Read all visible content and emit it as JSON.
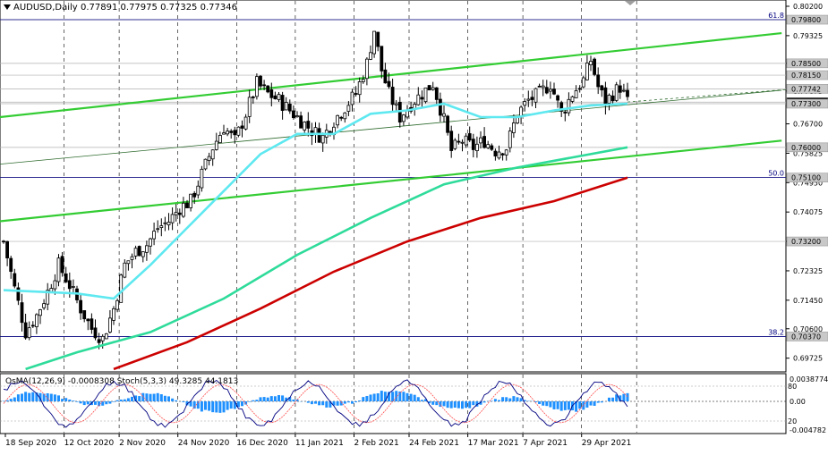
{
  "header": {
    "symbol": "AUDUSD,Daily",
    "ohlc": "0.77891 0.77975 0.77325 0.77346"
  },
  "osc_header": "OsMA(12,26,9) -0.0008308 Stoch(5,3,3) 49.3285 44.1813",
  "colors": {
    "background": "#ffffff",
    "candle": "#000000",
    "ma_short": "#5ee8f0",
    "ma_mid": "#2edb9a",
    "ma_long": "#cc0000",
    "channel": "#33cc33",
    "hist": "#1e90ff",
    "stoch_main": "#000080",
    "stoch_signal": "#ff4d4d",
    "fib_line": "#000080"
  },
  "chart_data": [
    {
      "type": "candlestick",
      "title": "AUDUSD,Daily",
      "ylim": [
        0.6937,
        0.802
      ],
      "x": [
        "18 Sep 2020",
        "12 Oct 2020",
        "2 Nov 2020",
        "24 Nov 2020",
        "16 Dec 2020",
        "11 Jan 2021",
        "2 Feb 2021",
        "24 Feb 2021",
        "17 Mar 2021",
        "7 Apr 2021",
        "29 Apr 2021"
      ],
      "y_ticks": [
        "0.80200",
        "0.79325",
        "0.78500",
        "0.77675",
        "0.76700",
        "0.75825",
        "0.74950",
        "0.74075",
        "0.73200",
        "0.72325",
        "0.71450",
        "0.70600",
        "0.69725"
      ],
      "price_tags": [
        "0.79800",
        "0.78500",
        "0.78150",
        "0.77742",
        "0.77346",
        "0.77300",
        "0.76000",
        "0.75100",
        "0.73200",
        "0.70370"
      ],
      "fib_levels": [
        {
          "label": "61.8",
          "value": 0.798
        },
        {
          "label": "50.0",
          "value": 0.751
        },
        {
          "label": "38.2",
          "value": 0.7037
        }
      ],
      "close_path": [
        [
          0,
          0.732
        ],
        [
          3,
          0.718
        ],
        [
          6,
          0.705
        ],
        [
          9,
          0.71
        ],
        [
          12,
          0.717
        ],
        [
          15,
          0.725
        ],
        [
          18,
          0.719
        ],
        [
          21,
          0.712
        ],
        [
          24,
          0.706
        ],
        [
          27,
          0.703
        ],
        [
          30,
          0.712
        ],
        [
          33,
          0.725
        ],
        [
          36,
          0.729
        ],
        [
          39,
          0.731
        ],
        [
          42,
          0.736
        ],
        [
          45,
          0.738
        ],
        [
          48,
          0.742
        ],
        [
          51,
          0.744
        ],
        [
          54,
          0.752
        ],
        [
          57,
          0.76
        ],
        [
          60,
          0.766
        ],
        [
          63,
          0.762
        ],
        [
          66,
          0.77
        ],
        [
          69,
          0.779
        ],
        [
          72,
          0.776
        ],
        [
          75,
          0.774
        ],
        [
          78,
          0.771
        ],
        [
          81,
          0.768
        ],
        [
          84,
          0.765
        ],
        [
          87,
          0.763
        ],
        [
          90,
          0.768
        ],
        [
          93,
          0.772
        ],
        [
          96,
          0.776
        ],
        [
          99,
          0.785
        ],
        [
          101,
          0.795
        ],
        [
          103,
          0.783
        ],
        [
          105,
          0.776
        ],
        [
          108,
          0.769
        ],
        [
          111,
          0.773
        ],
        [
          114,
          0.776
        ],
        [
          117,
          0.779
        ],
        [
          120,
          0.768
        ],
        [
          122,
          0.759
        ],
        [
          125,
          0.762
        ],
        [
          128,
          0.76
        ],
        [
          131,
          0.762
        ],
        [
          134,
          0.759
        ],
        [
          137,
          0.76
        ],
        [
          140,
          0.77
        ],
        [
          143,
          0.774
        ],
        [
          146,
          0.776
        ],
        [
          149,
          0.779
        ],
        [
          152,
          0.77
        ],
        [
          155,
          0.776
        ],
        [
          158,
          0.78
        ],
        [
          160,
          0.786
        ],
        [
          162,
          0.778
        ],
        [
          164,
          0.7735
        ],
        [
          166,
          0.776
        ],
        [
          168,
          0.778
        ],
        [
          170,
          0.7735
        ]
      ],
      "ma_short_path": [
        [
          0,
          0.7175
        ],
        [
          10,
          0.717
        ],
        [
          20,
          0.7165
        ],
        [
          30,
          0.715
        ],
        [
          40,
          0.725
        ],
        [
          50,
          0.736
        ],
        [
          60,
          0.747
        ],
        [
          70,
          0.758
        ],
        [
          80,
          0.764
        ],
        [
          90,
          0.764
        ],
        [
          100,
          0.77
        ],
        [
          110,
          0.771
        ],
        [
          120,
          0.773
        ],
        [
          130,
          0.769
        ],
        [
          140,
          0.769
        ],
        [
          150,
          0.771
        ],
        [
          160,
          0.7725
        ],
        [
          170,
          0.773
        ]
      ],
      "ma_mid_path": [
        [
          6,
          0.694
        ],
        [
          20,
          0.699
        ],
        [
          40,
          0.705
        ],
        [
          60,
          0.715
        ],
        [
          80,
          0.728
        ],
        [
          100,
          0.739
        ],
        [
          120,
          0.749
        ],
        [
          140,
          0.754
        ],
        [
          155,
          0.757
        ],
        [
          170,
          0.76
        ]
      ],
      "ma_long_path": [
        [
          30,
          0.694
        ],
        [
          50,
          0.702
        ],
        [
          70,
          0.712
        ],
        [
          90,
          0.723
        ],
        [
          110,
          0.732
        ],
        [
          130,
          0.739
        ],
        [
          150,
          0.744
        ],
        [
          170,
          0.751
        ]
      ],
      "channel_lines": [
        {
          "from": [
            -1,
            0.769
          ],
          "to": [
            212,
            0.794
          ]
        },
        {
          "from": [
            -1,
            0.738
          ],
          "to": [
            212,
            0.762
          ]
        },
        {
          "from": [
            -1,
            0.755
          ],
          "to": [
            212,
            0.777
          ]
        }
      ]
    },
    {
      "type": "histogram",
      "title": "OsMA(12,26,9) Stoch(5,3,3)",
      "y_ticks": [
        "0.0038774",
        "0.00",
        "-0.004782"
      ],
      "stoch_levels": [
        "80",
        "20"
      ]
    }
  ]
}
